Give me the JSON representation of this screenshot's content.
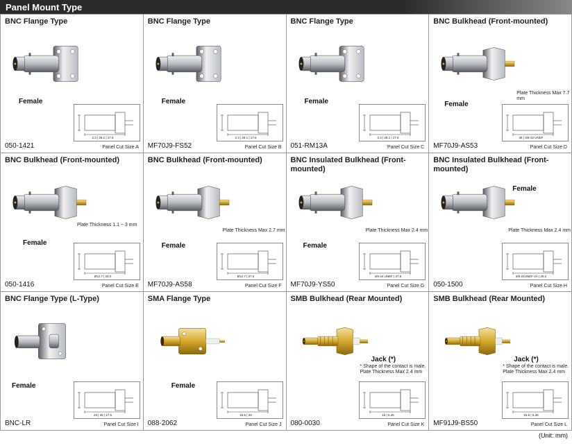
{
  "header": "Panel Mount Type",
  "unit": "(Unit: mm)",
  "cells": [
    {
      "title": "BNC Flange Type",
      "gender": "Female",
      "part": "050-1421",
      "cut": "Panel Cut Size A",
      "note": "",
      "color": "silver",
      "gx": 26,
      "gy": 120,
      "nx": 0,
      "ny": 0,
      "dims": "2.3 | 28.1 | 17.6"
    },
    {
      "title": "BNC Flange Type",
      "gender": "Female",
      "part": "MF70J9-FS52",
      "cut": "Panel Cut Size B",
      "note": "",
      "color": "silver",
      "gx": 26,
      "gy": 120,
      "nx": 0,
      "ny": 0,
      "dims": "2.3 | 28.1 | 17.6"
    },
    {
      "title": "BNC Flange Type",
      "gender": "Female",
      "part": "051-RM13A",
      "cut": "Panel Cut Size C",
      "note": "",
      "color": "silver",
      "gx": 26,
      "gy": 120,
      "nx": 0,
      "ny": 0,
      "dims": "2.3 | 28.1 | 17.6"
    },
    {
      "title": "BNC Bulkhead (Front-mounted)",
      "gender": "Female",
      "part": "MF70J9-AS53",
      "cut": "Panel Cut Size D",
      "note": "Plate Thickness Max 7.7 mm",
      "color": "silver",
      "gx": 22,
      "gy": 124,
      "nx": 126,
      "ny": 110,
      "dims": "38 | 3/8-32 UNEF"
    },
    {
      "title": "BNC Bulkhead (Front-mounted)",
      "gender": "Female",
      "part": "050-1416",
      "cut": "Panel Cut Size E",
      "note": "Plate Thickness 1.1 ~ 3 mm",
      "color": "silver",
      "gx": 32,
      "gy": 124,
      "nx": 110,
      "ny": 100,
      "dims": "Ø12.7 | 25.0"
    },
    {
      "title": "BNC Bulkhead (Front-mounted)",
      "gender": "Female",
      "part": "MF70J9-AS58",
      "cut": "Panel Cut Size F",
      "note": "Plate Thickness Max 2.7 mm",
      "color": "silver",
      "gx": 26,
      "gy": 128,
      "nx": 114,
      "ny": 108,
      "dims": "Ø12.7 | 27.6"
    },
    {
      "title": "BNC Insulated Bulkhead (Front-mounted)",
      "gender": "Female",
      "part": "MF70J9-YS50",
      "cut": "Panel Cut Size G",
      "note": "Plate Thickness Max 2.4 mm",
      "color": "silver",
      "gx": 24,
      "gy": 128,
      "nx": 114,
      "ny": 108,
      "dims": "3/8-24 UNEF | 27.6"
    },
    {
      "title": "BNC Insulated Bulkhead (Front-mounted)",
      "gender": "Female",
      "part": "050-1500",
      "cut": "Panel Cut Size H",
      "note": "Plate Thickness Max 2.4 mm",
      "color": "silver",
      "gx": 120,
      "gy": 46,
      "nx": 114,
      "ny": 108,
      "dims": "3/8-24UNEF-2A | 28.2"
    },
    {
      "title": "BNC Flange Type (L-Type)",
      "gender": "Female",
      "part": "BNC-LR",
      "cut": "Panel Cut Size I",
      "note": "",
      "color": "silver",
      "gx": 16,
      "gy": 130,
      "nx": 0,
      "ny": 0,
      "dims": "23 | 26 | 17.5"
    },
    {
      "title": "SMA Flange Type",
      "gender": "Female",
      "part": "088-2062",
      "cut": "Panel Cut Size J",
      "note": "",
      "color": "gold",
      "gx": 40,
      "gy": 130,
      "nx": 0,
      "ny": 0,
      "dims": "15.5 | 20"
    },
    {
      "title": "SMB Bulkhead (Rear Mounted)",
      "gender": "Jack (*)",
      "part": "080-0030",
      "cut": "Panel Cut Size K",
      "note": "* Shape of the contact is male.\nPlate Thickness Max 2.4 mm",
      "color": "gold",
      "gx": 122,
      "gy": 92,
      "nx": 106,
      "ny": 104,
      "dims": "15 | 6.35"
    },
    {
      "title": "SMB Bulkhead (Rear Mounted)",
      "gender": "Jack (*)",
      "part": "MF91J9-BS50",
      "cut": "Panel Cut Size L",
      "note": "* Shape of the contact is male.\nPlate Thickness Max 2.4 mm",
      "color": "gold",
      "gx": 122,
      "gy": 92,
      "nx": 106,
      "ny": 104,
      "dims": "15.8 | 6.35"
    }
  ],
  "svg_colors": {
    "silver_hi": "#f0f0f2",
    "silver_mid": "#b8bcc0",
    "silver_lo": "#5a5e64",
    "gold_hi": "#f5e0a0",
    "gold_mid": "#d4a82c",
    "gold_lo": "#8a6a10",
    "diag_line": "#444"
  }
}
